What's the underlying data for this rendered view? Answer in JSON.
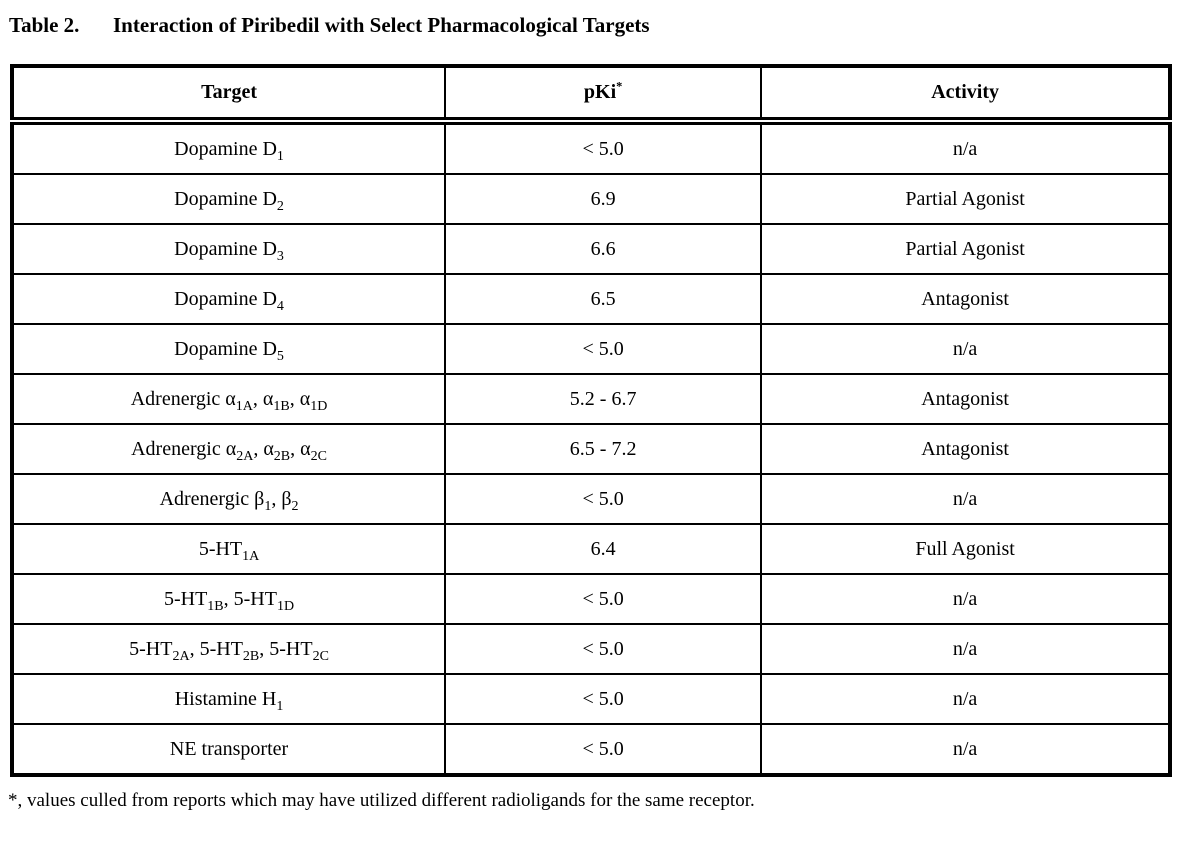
{
  "page": {
    "title_label": "Table 2.",
    "title_text": "Interaction of Piribedil with Select Pharmacological Targets",
    "footnote": "*, values culled from reports which may have utilized different radioligands for the same receptor."
  },
  "table": {
    "headers": {
      "target": "Target",
      "pki": "pKi^{*}",
      "activity": "Activity"
    },
    "rows": [
      {
        "target": "Dopamine D_{1}",
        "pki": "< 5.0",
        "activity": "n/a"
      },
      {
        "target": "Dopamine D_{2}",
        "pki": "6.9",
        "activity": "Partial Agonist"
      },
      {
        "target": "Dopamine D_{3}",
        "pki": "6.6",
        "activity": "Partial Agonist"
      },
      {
        "target": "Dopamine D_{4}",
        "pki": "6.5",
        "activity": "Antagonist"
      },
      {
        "target": "Dopamine D_{5}",
        "pki": "< 5.0",
        "activity": "n/a"
      },
      {
        "target": "Adrenergic α_{1A}, α_{1B}, α_{1D}",
        "pki": "5.2 - 6.7",
        "activity": "Antagonist"
      },
      {
        "target": "Adrenergic α_{2A}, α_{2B}, α_{2C}",
        "pki": "6.5 - 7.2",
        "activity": "Antagonist"
      },
      {
        "target": "Adrenergic β_{1}, β_{2}",
        "pki": "< 5.0",
        "activity": "n/a"
      },
      {
        "target": "5-HT_{1A}",
        "pki": "6.4",
        "activity": "Full Agonist"
      },
      {
        "target": "5-HT_{1B}, 5-HT_{1D}",
        "pki": "< 5.0",
        "activity": "n/a"
      },
      {
        "target": "5-HT_{2A}, 5-HT_{2B}, 5-HT_{2C}",
        "pki": "< 5.0",
        "activity": "n/a"
      },
      {
        "target": "Histamine H_{1}",
        "pki": "< 5.0",
        "activity": "n/a"
      },
      {
        "target": "NE transporter",
        "pki": "< 5.0",
        "activity": "n/a"
      }
    ],
    "colors": {
      "border": "#000000",
      "text": "#000000",
      "background": "#ffffff"
    }
  }
}
